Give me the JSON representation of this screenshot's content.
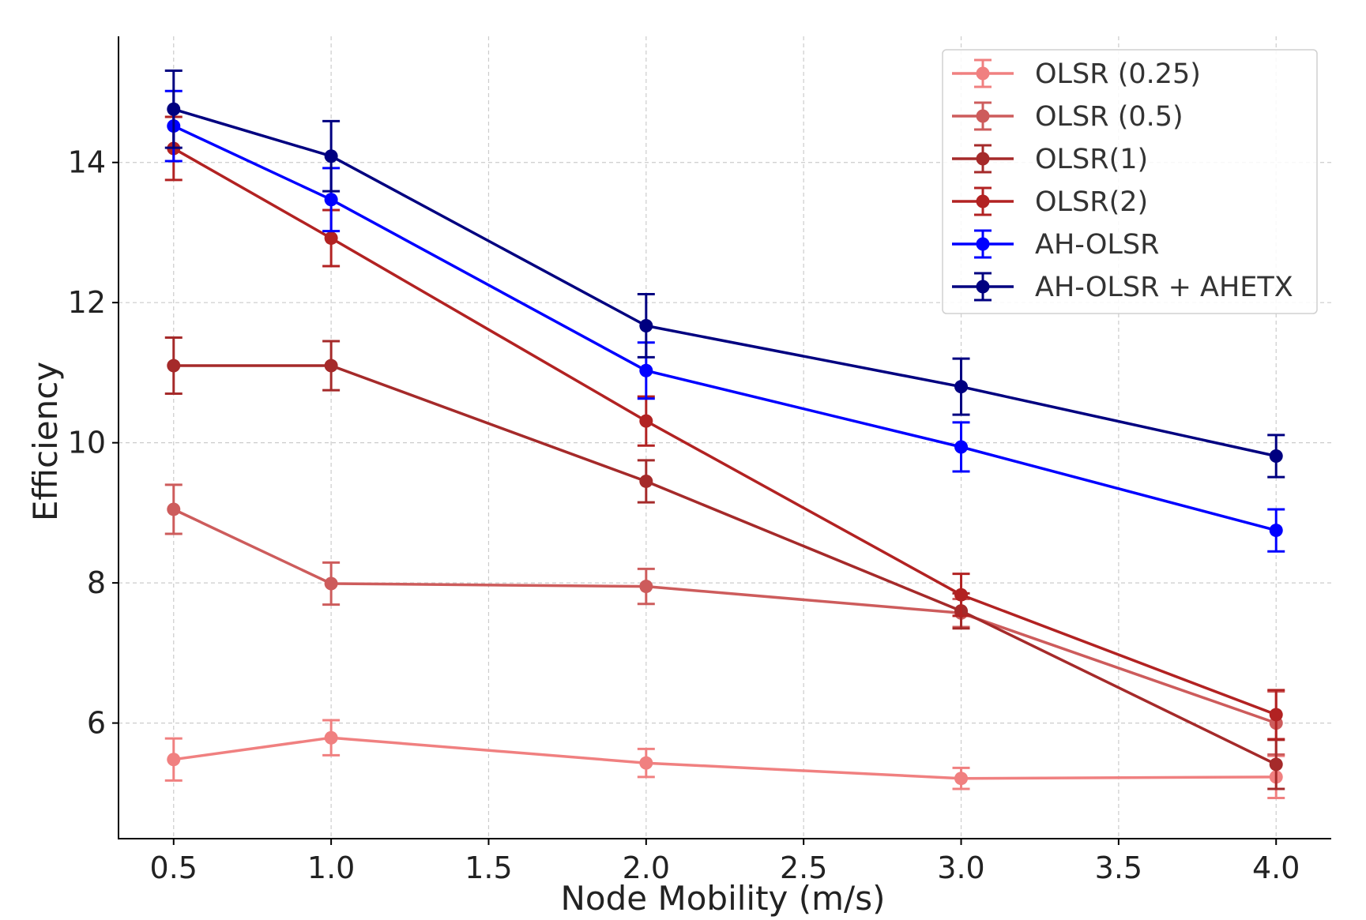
{
  "chart_data": {
    "type": "line",
    "title": "",
    "xlabel": "Node Mobility (m/s)",
    "ylabel": "Efficiency",
    "xlim": [
      0.325,
      4.175
    ],
    "ylim": [
      4.35,
      15.8
    ],
    "xticks": [
      "0.5",
      "1.0",
      "1.5",
      "2.0",
      "2.5",
      "3.0",
      "3.5",
      "4.0"
    ],
    "yticks": [
      "6",
      "8",
      "10",
      "12",
      "14"
    ],
    "grid": true,
    "legend_position": "top-right",
    "x": [
      0.5,
      1.0,
      2.0,
      3.0,
      4.0
    ],
    "series": [
      {
        "name": "OLSR (0.25)",
        "color": "#f08080",
        "values": [
          5.48,
          5.79,
          5.43,
          5.21,
          5.23
        ],
        "errors": [
          0.3,
          0.25,
          0.2,
          0.15,
          0.3
        ]
      },
      {
        "name": "OLSR (0.5)",
        "color": "#cd5c5c",
        "values": [
          9.05,
          7.99,
          7.95,
          7.57,
          6.0
        ],
        "errors": [
          0.35,
          0.3,
          0.25,
          0.2,
          0.45
        ]
      },
      {
        "name": "OLSR(1)",
        "color": "#a52a2a",
        "values": [
          11.1,
          11.1,
          9.45,
          7.6,
          5.41
        ],
        "errors": [
          0.4,
          0.35,
          0.3,
          0.25,
          0.35
        ]
      },
      {
        "name": "OLSR(2)",
        "color": "#b22222",
        "values": [
          14.2,
          12.92,
          10.31,
          7.83,
          6.12
        ],
        "errors": [
          0.45,
          0.4,
          0.35,
          0.3,
          0.35
        ]
      },
      {
        "name": "AH-OLSR",
        "color": "#0000ff",
        "values": [
          14.52,
          13.47,
          11.03,
          9.94,
          8.75
        ],
        "errors": [
          0.5,
          0.45,
          0.4,
          0.35,
          0.3
        ]
      },
      {
        "name": "AH-OLSR + AHETX",
        "color": "#000080",
        "values": [
          14.76,
          14.09,
          11.67,
          10.8,
          9.81
        ],
        "errors": [
          0.55,
          0.5,
          0.45,
          0.4,
          0.3
        ]
      }
    ]
  }
}
